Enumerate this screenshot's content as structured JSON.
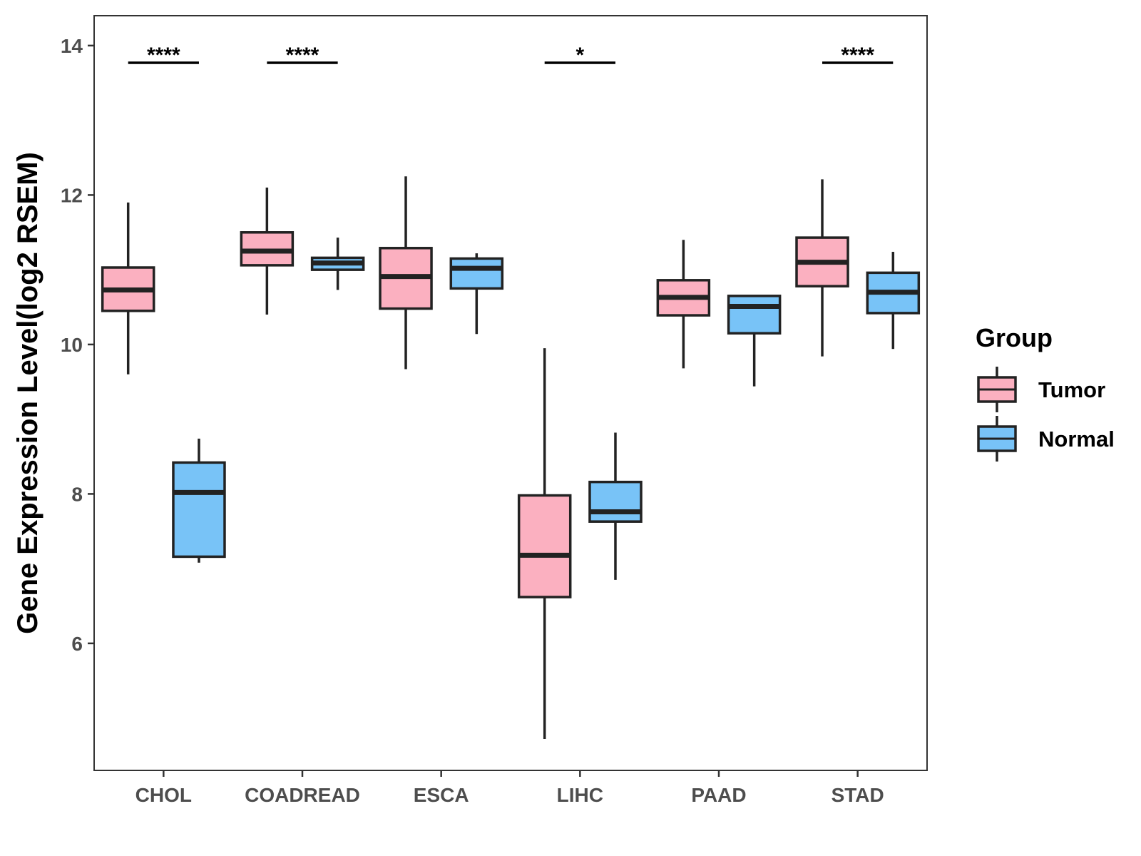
{
  "chart_data": {
    "type": "boxplot",
    "title": "",
    "xlabel": "",
    "ylabel": "Gene Expression Level(log2 RSEM)",
    "ylim": [
      4.3,
      14.4
    ],
    "yticks": [
      6,
      8,
      10,
      12,
      14
    ],
    "grid": false,
    "categories": [
      "CHOL",
      "COADREAD",
      "ESCA",
      "LIHC",
      "PAAD",
      "STAD"
    ],
    "series": [
      {
        "name": "Tumor",
        "color": "#FBB0C0",
        "boxes": [
          {
            "min": 9.6,
            "q1": 10.45,
            "median": 10.73,
            "q3": 11.03,
            "max": 11.9
          },
          {
            "min": 10.4,
            "q1": 11.06,
            "median": 11.25,
            "q3": 11.5,
            "max": 12.1
          },
          {
            "min": 9.67,
            "q1": 10.48,
            "median": 10.91,
            "q3": 11.29,
            "max": 12.25
          },
          {
            "min": 4.72,
            "q1": 6.62,
            "median": 7.18,
            "q3": 7.98,
            "max": 9.95
          },
          {
            "min": 9.68,
            "q1": 10.39,
            "median": 10.63,
            "q3": 10.86,
            "max": 11.4
          },
          {
            "min": 9.84,
            "q1": 10.78,
            "median": 11.1,
            "q3": 11.43,
            "max": 12.21
          }
        ]
      },
      {
        "name": "Normal",
        "color": "#78C3F7",
        "boxes": [
          {
            "min": 7.08,
            "q1": 7.16,
            "median": 8.02,
            "q3": 8.42,
            "max": 8.74
          },
          {
            "min": 10.73,
            "q1": 11.0,
            "median": 11.09,
            "q3": 11.16,
            "max": 11.43
          },
          {
            "min": 10.14,
            "q1": 10.75,
            "median": 11.02,
            "q3": 11.15,
            "max": 11.22
          },
          {
            "min": 6.85,
            "q1": 7.63,
            "median": 7.76,
            "q3": 8.16,
            "max": 8.82
          },
          {
            "min": 9.44,
            "q1": 10.15,
            "median": 10.51,
            "q3": 10.65,
            "max": 10.65
          },
          {
            "min": 9.94,
            "q1": 10.42,
            "median": 10.7,
            "q3": 10.96,
            "max": 11.24
          }
        ]
      }
    ],
    "significance": [
      {
        "category": "CHOL",
        "label": "****",
        "y": 13.77
      },
      {
        "category": "COADREAD",
        "label": "****",
        "y": 13.77
      },
      {
        "category": "LIHC",
        "label": "*",
        "y": 13.77
      },
      {
        "category": "STAD",
        "label": "****",
        "y": 13.77
      }
    ],
    "legend": {
      "title": "Group",
      "position": "right",
      "entries": [
        "Tumor",
        "Normal"
      ]
    }
  }
}
